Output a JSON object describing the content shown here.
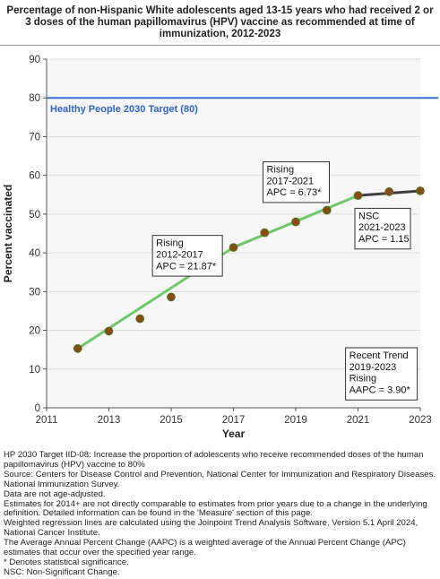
{
  "title": "Percentage of non-Hispanic White adolescents aged 13-15 years who had received 2 or 3 doses of the human papillomavirus (HPV) vaccine as recommended at time of immunization, 2012-2023",
  "colors": {
    "target_line": "#3a6fd8",
    "target_text": "#2e62cf",
    "segment_rising": "#6dc868",
    "segment_nsc": "#3f3f3f",
    "marker_fill": "#8b4a14",
    "marker_stroke": "#5a6b1a",
    "plot_bg": "#f7f7f7",
    "grid": "#dddddd"
  },
  "chart_data": {
    "type": "line",
    "xlabel": "Year",
    "ylabel": "Percent vaccinated",
    "xlim": [
      2011,
      2023
    ],
    "ylim": [
      0,
      90
    ],
    "x_ticks": [
      "2011",
      "2013",
      "2015",
      "2017",
      "2019",
      "2021",
      "2023"
    ],
    "y_ticks": [
      "0",
      "10",
      "20",
      "30",
      "40",
      "50",
      "60",
      "70",
      "80",
      "90"
    ],
    "grid": "horizontal",
    "points": [
      {
        "x": 2012,
        "y": 15.3
      },
      {
        "x": 2013,
        "y": 19.8
      },
      {
        "x": 2014,
        "y": 23.0
      },
      {
        "x": 2015,
        "y": 28.6
      },
      {
        "x": 2016,
        "y": 35.6
      },
      {
        "x": 2017,
        "y": 41.4
      },
      {
        "x": 2018,
        "y": 45.2
      },
      {
        "x": 2019,
        "y": 48.0
      },
      {
        "x": 2020,
        "y": 51.0
      },
      {
        "x": 2021,
        "y": 54.8
      },
      {
        "x": 2022,
        "y": 55.8
      },
      {
        "x": 2023,
        "y": 56.0
      }
    ],
    "segments": [
      {
        "x": [
          2012,
          2017
        ],
        "y": [
          15.3,
          41.4
        ],
        "trend": "rising"
      },
      {
        "x": [
          2017,
          2021
        ],
        "y": [
          41.4,
          54.8
        ],
        "trend": "rising"
      },
      {
        "x": [
          2021,
          2023
        ],
        "y": [
          54.8,
          56.0
        ],
        "trend": "nsc"
      }
    ],
    "target": {
      "value": 80,
      "label": "Healthy People 2030 Target (80)"
    },
    "annotations": [
      {
        "lines": [
          "Rising",
          "2012-2017",
          "APC = 21.87*"
        ]
      },
      {
        "lines": [
          "Rising",
          "2017-2021",
          "APC =  6.73*"
        ]
      },
      {
        "lines": [
          "NSC",
          "2021-2023",
          "APC =  1.15"
        ]
      },
      {
        "lines": [
          "Recent Trend",
          "2019-2023",
          "Rising",
          "AAPC =  3.90*"
        ]
      }
    ]
  },
  "footnotes": [
    "HP 2030 Target IID-08:  Increase the proportion of adolescents who receive recommended doses of the human papillomavirus (HPV) vaccine to 80%",
    "Source: Centers for Disease Control and Prevention, National Center for Immunization and Respiratory Diseases. National Immunization Survey.",
    "Data are not age-adjusted.",
    "Estimates for 2014+ are not directly comparable to estimates from prior years due to a change in the underlying definition. Detailed information can be found in the 'Measure' section of this page.",
    "Weighted regression lines are calculated using the Joinpoint Trend Analysis Software, Version 5.1 April 2024, National Cancer Institute.",
    "The Average Annual Percent Change (AAPC) is a weighted average of the Annual Percent Change (APC) estimates that occur over the specified year range.",
    "* Denotes statistical significance.",
    "NSC: Non-Significant Change."
  ]
}
